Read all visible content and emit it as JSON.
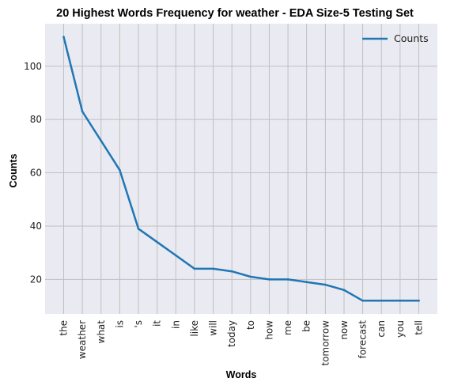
{
  "chart_data": {
    "type": "line",
    "title": "20 Highest Words Frequency for weather - EDA Size-5 Testing Set",
    "xlabel": "Words",
    "ylabel": "Counts",
    "categories": [
      "the",
      "weather",
      "what",
      "is",
      "'s",
      "it",
      "in",
      "like",
      "will",
      "today",
      "to",
      "how",
      "me",
      "be",
      "tomorrow",
      "now",
      "forecast",
      "can",
      "you",
      "tell"
    ],
    "series": [
      {
        "name": "Counts",
        "values": [
          111,
          83,
          72,
          61,
          39,
          34,
          29,
          24,
          24,
          23,
          21,
          20,
          20,
          19,
          18,
          16,
          12,
          12,
          12,
          12
        ]
      }
    ],
    "yticks": [
      20,
      40,
      60,
      80,
      100
    ],
    "ylim": [
      7.05,
      115.95
    ],
    "grid": true,
    "legend": "top-right",
    "colors": {
      "line": "#1f77b4",
      "plot_bg": "#eaeaf2",
      "grid": "#c0c0c0"
    }
  }
}
